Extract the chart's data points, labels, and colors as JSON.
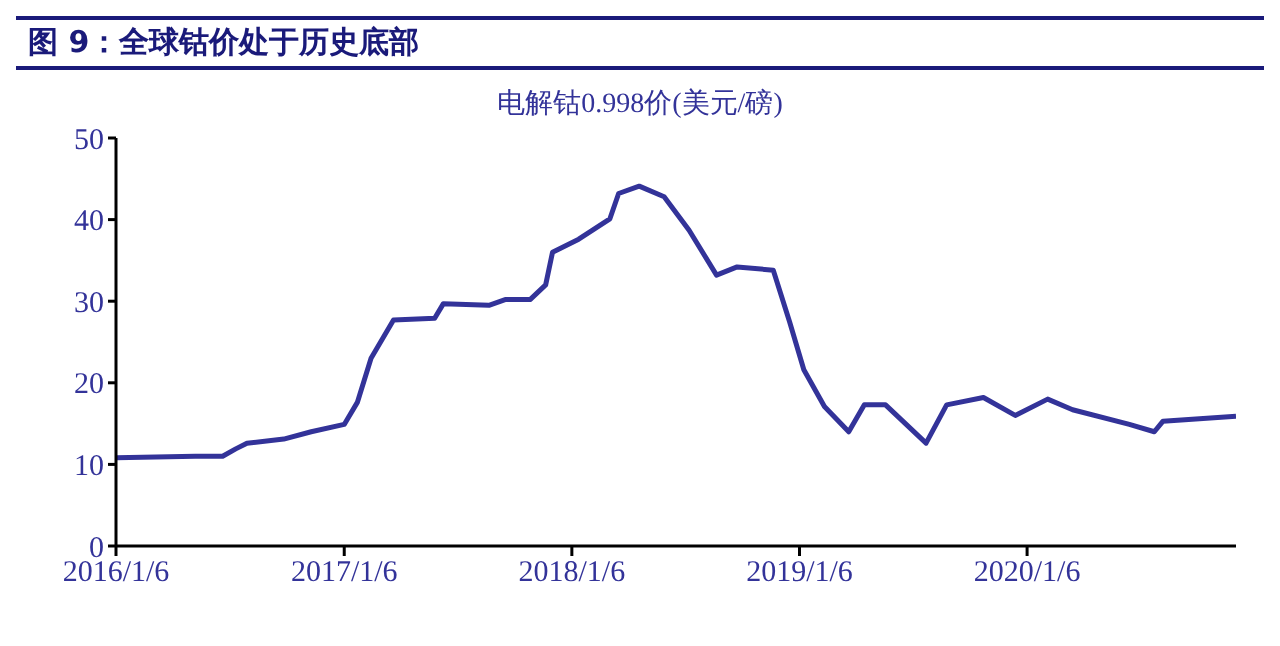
{
  "chart_data": {
    "type": "line",
    "title": "图 9：全球钴价处于历史底部",
    "subtitle": "电解钴0.998价(美元/磅)",
    "x": [
      "2016-01-06",
      "2016-05-12",
      "2016-06-25",
      "2016-07-16",
      "2016-08-03",
      "2016-10-01",
      "2016-11-14",
      "2017-01-06",
      "2017-01-27",
      "2017-02-18",
      "2017-03-26",
      "2017-05-31",
      "2017-06-14",
      "2017-08-26",
      "2017-09-21",
      "2017-10-31",
      "2017-11-25",
      "2017-12-06",
      "2018-01-17",
      "2018-03-08",
      "2018-03-22",
      "2018-04-24",
      "2018-06-03",
      "2018-07-13",
      "2018-08-26",
      "2018-09-28",
      "2018-11-25",
      "2018-12-21",
      "2019-01-13",
      "2019-02-15",
      "2019-03-26",
      "2019-04-20",
      "2019-05-24",
      "2019-07-28",
      "2019-08-30",
      "2019-10-28",
      "2019-12-18",
      "2020-02-08",
      "2020-03-19",
      "2020-06-18",
      "2020-07-28",
      "2020-08-11",
      "2020-12-06"
    ],
    "series": [
      {
        "color": "#333399",
        "values": [
          10.8,
          11.0,
          11.0,
          11.9,
          12.6,
          13.1,
          14.0,
          14.9,
          17.6,
          23,
          27.7,
          27.9,
          29.7,
          29.5,
          30.2,
          30.2,
          32,
          36,
          37.6,
          40.1,
          43.2,
          44.1,
          42.8,
          38.7,
          33.2,
          34.2,
          33.8,
          27.5,
          21.6,
          17.1,
          14.0,
          17.3,
          17.3,
          12.6,
          17.3,
          18.2,
          16.0,
          18.0,
          16.7,
          14.9,
          14.0,
          15.3,
          15.9
        ]
      }
    ],
    "xlim": [
      "2016-01-06",
      "2020-12-06"
    ],
    "xticks": [
      {
        "value": "2016-01-06",
        "label": "2016/1/6"
      },
      {
        "value": "2017-01-06",
        "label": "2017/1/6"
      },
      {
        "value": "2018-01-06",
        "label": "2018/1/6"
      },
      {
        "value": "2019-01-06",
        "label": "2019/1/6"
      },
      {
        "value": "2020-01-06",
        "label": "2020/1/6"
      }
    ],
    "ylim": [
      0,
      50
    ],
    "yticks": [
      0,
      10,
      20,
      30,
      40,
      50
    ],
    "grid": false,
    "legend": false,
    "marker": "none",
    "line_style": "solid"
  }
}
